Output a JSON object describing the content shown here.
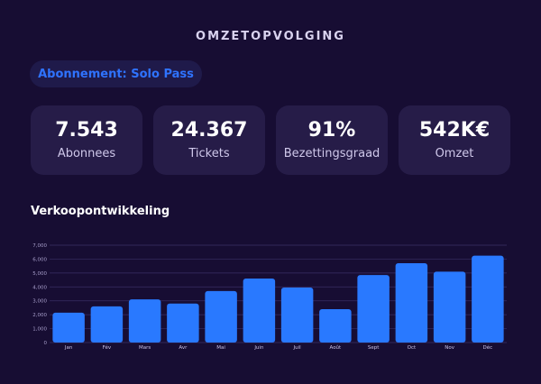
{
  "header": {
    "title": "OMZETOPVOLGING"
  },
  "plan": {
    "label": "Abonnement: Solo Pass"
  },
  "kpis": [
    {
      "value": "7.543",
      "label": "Abonnees"
    },
    {
      "value": "24.367",
      "label": "Tickets"
    },
    {
      "value": "91%",
      "label": "Bezettingsgraad"
    },
    {
      "value": "542K€",
      "label": "Omzet"
    }
  ],
  "section": {
    "title": "Verkoopontwikkeling"
  },
  "colors": {
    "bar": "#2979ff",
    "background": "#170d33",
    "card": "#261c48"
  },
  "chart_data": {
    "type": "bar",
    "title": "",
    "xlabel": "",
    "ylabel": "",
    "categories": [
      "Jan",
      "Fév",
      "Mars",
      "Avr",
      "Mai",
      "Juin",
      "Juil",
      "Août",
      "Sept",
      "Oct",
      "Nov",
      "Déc"
    ],
    "values": [
      2150,
      2600,
      3100,
      2800,
      3700,
      4600,
      3950,
      2400,
      4850,
      5700,
      5100,
      6250
    ],
    "ylim": [
      0,
      7000
    ],
    "yticks": [
      "0",
      "1,000",
      "2,000",
      "3,000",
      "4,000",
      "5,000",
      "6,000",
      "7,000"
    ],
    "grid": true,
    "legend": "none"
  }
}
